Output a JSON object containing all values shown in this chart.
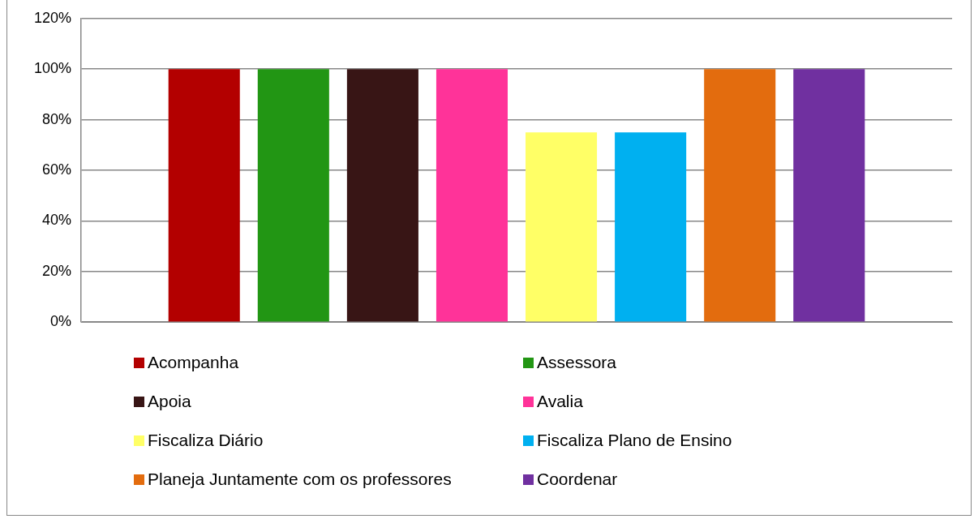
{
  "chart_data": {
    "type": "bar",
    "categories": [
      null
    ],
    "series": [
      {
        "name": "Acompanha",
        "color": "#b30000",
        "values": [
          100
        ]
      },
      {
        "name": "Assessora",
        "color": "#229614",
        "values": [
          100
        ]
      },
      {
        "name": "Apoia",
        "color": "#381515",
        "values": [
          100
        ]
      },
      {
        "name": "Avalia",
        "color": "#ff3399",
        "values": [
          100
        ]
      },
      {
        "name": "Fiscaliza Diário",
        "color": "#ffff66",
        "values": [
          75
        ]
      },
      {
        "name": "Fiscaliza Plano de Ensino",
        "color": "#00b0f0",
        "values": [
          75
        ]
      },
      {
        "name": "Planeja Juntamente com os professores",
        "color": "#e36c0e",
        "values": [
          100
        ]
      },
      {
        "name": "Coordenar",
        "color": "#7030a0",
        "values": [
          100
        ]
      }
    ],
    "ylim": [
      0,
      120
    ],
    "yticks": [
      {
        "value": 0,
        "label": "0%"
      },
      {
        "value": 20,
        "label": "20%"
      },
      {
        "value": 40,
        "label": "40%"
      },
      {
        "value": 60,
        "label": "60%"
      },
      {
        "value": 80,
        "label": "80%"
      },
      {
        "value": 100,
        "label": "100%"
      },
      {
        "value": 120,
        "label": "120%"
      }
    ],
    "grid": "y",
    "legend": "bottom"
  }
}
